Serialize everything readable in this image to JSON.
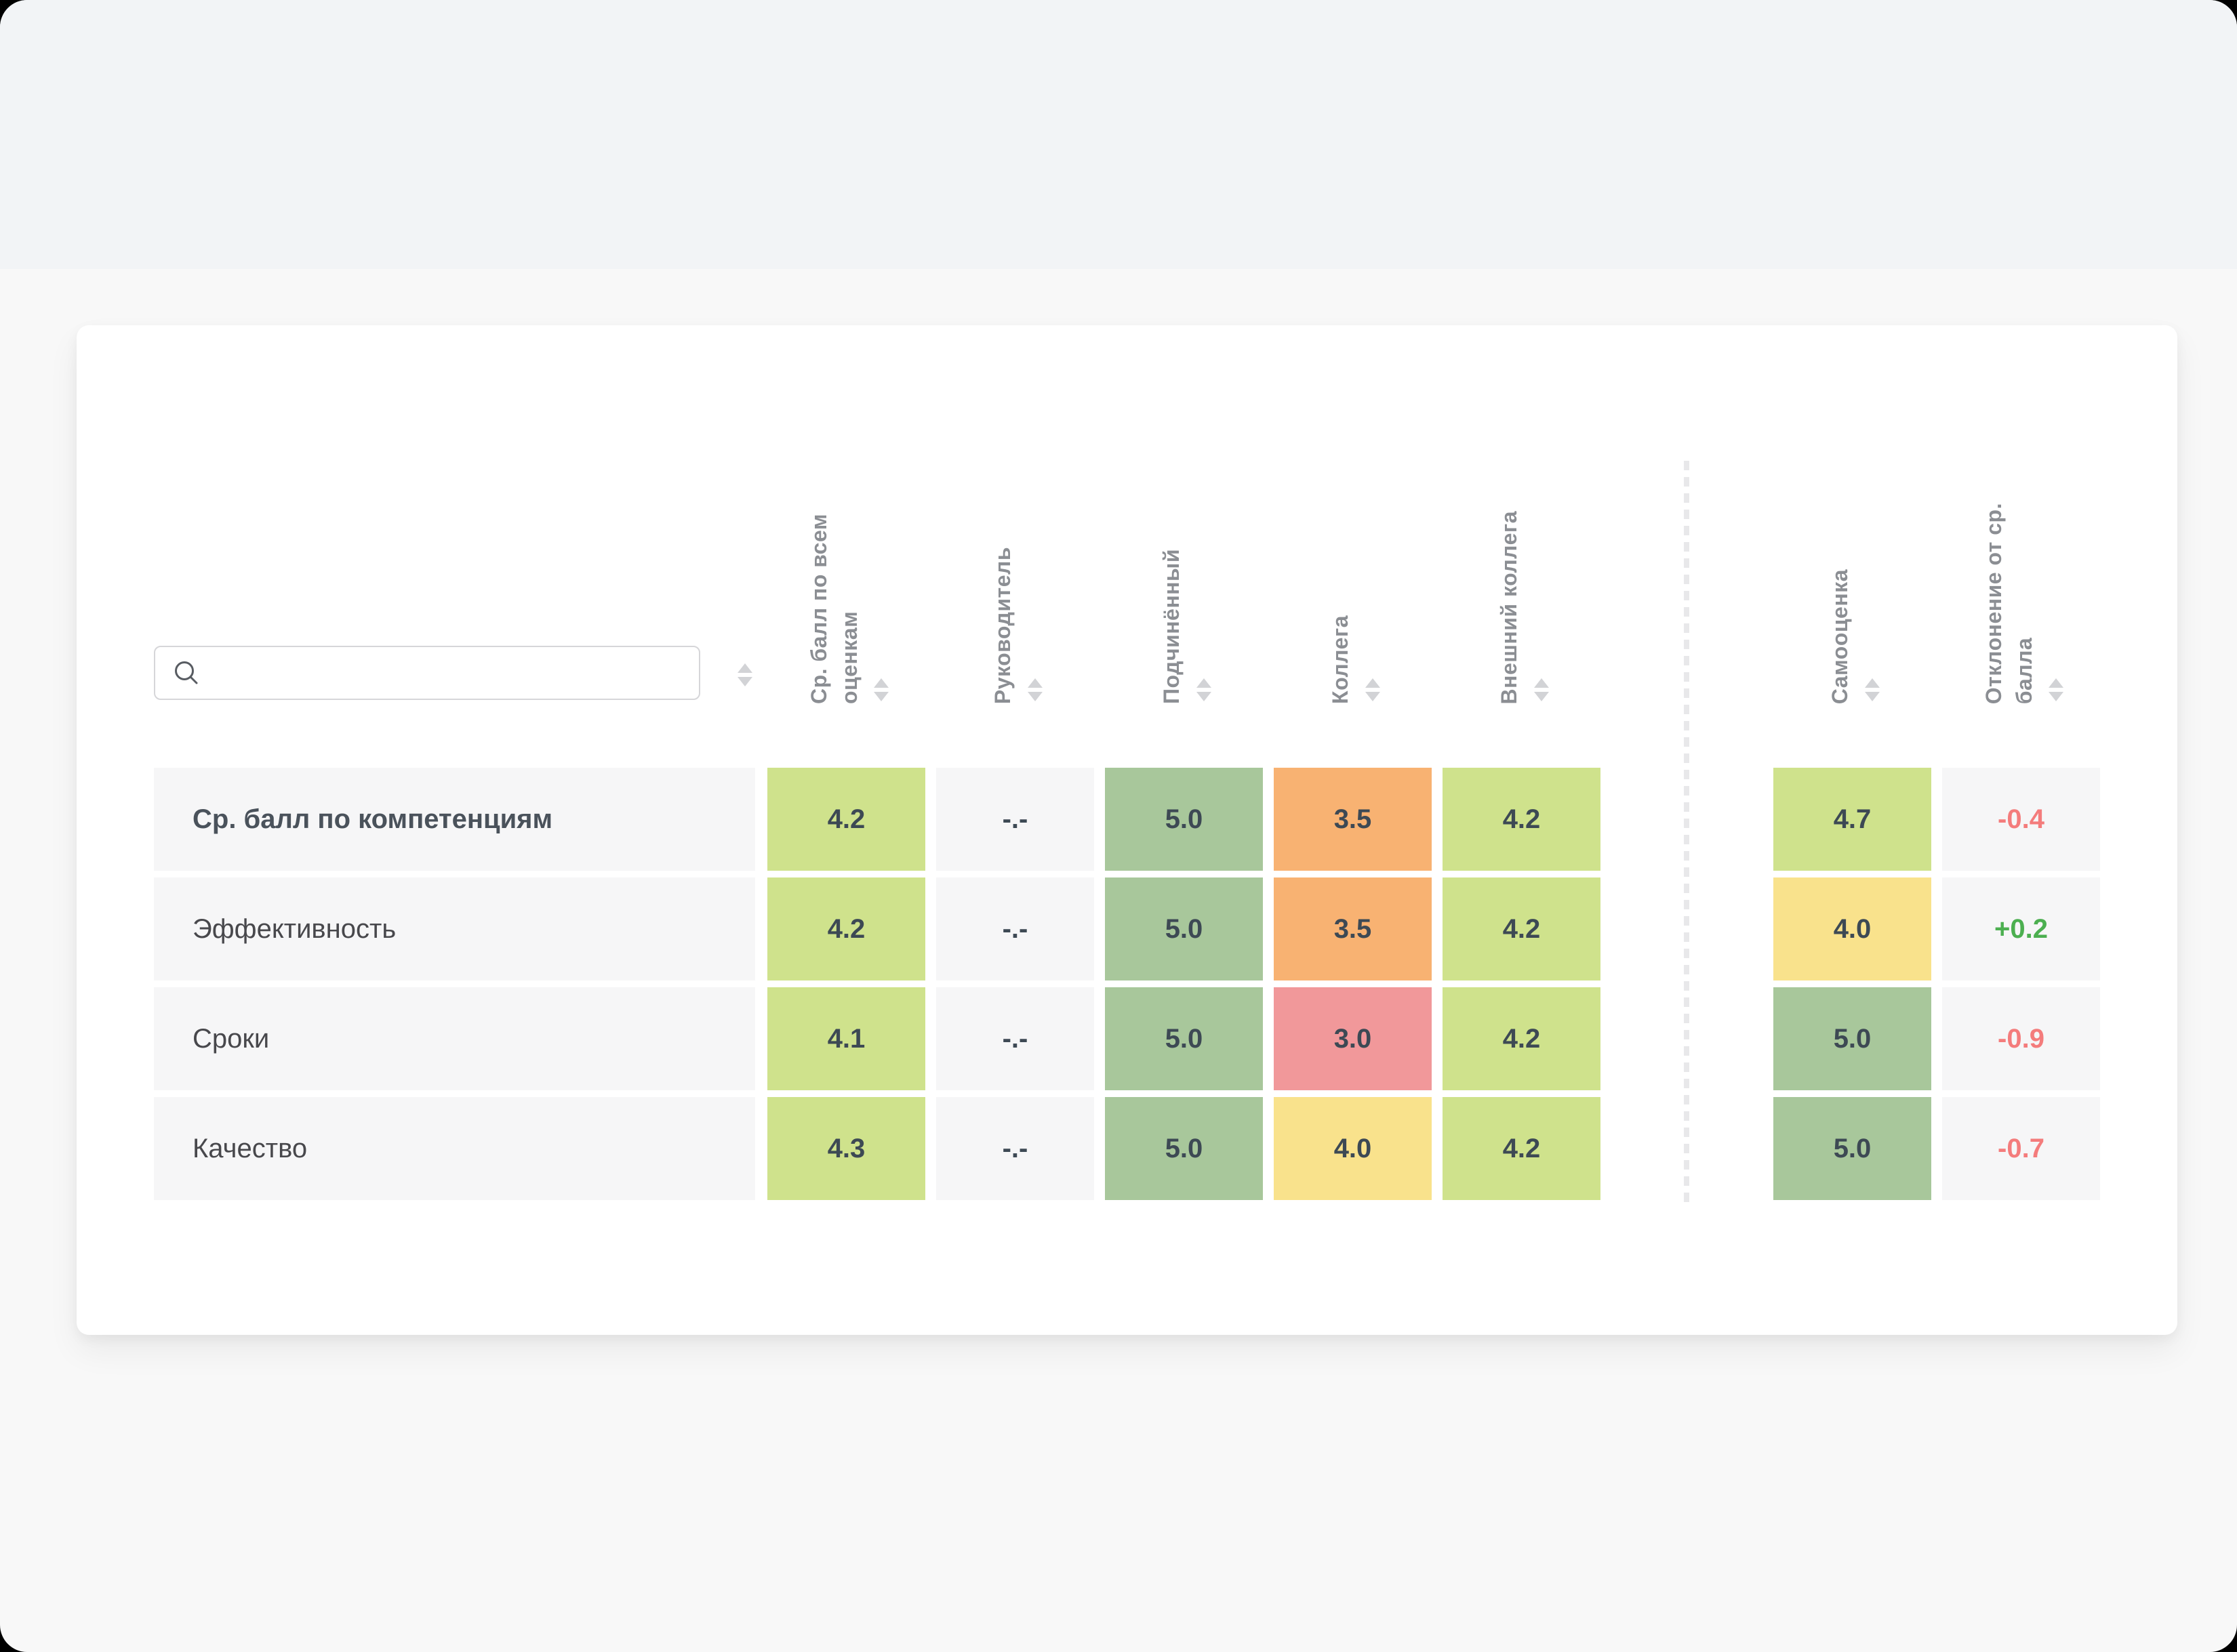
{
  "page": {
    "background_top": "#f2f4f6",
    "background_main": "#f8f8f8",
    "card_background": "#ffffff"
  },
  "search": {
    "placeholder": "",
    "value": ""
  },
  "table": {
    "columns": [
      {
        "key": "avg_all",
        "label": "Ср. балл по всем\nоценкам",
        "sortable": true
      },
      {
        "key": "manager",
        "label": "Руководитель",
        "sortable": true
      },
      {
        "key": "subordinate",
        "label": "Подчинённый",
        "sortable": true
      },
      {
        "key": "peer",
        "label": "Коллега",
        "sortable": true
      },
      {
        "key": "external_peer",
        "label": "Внешний коллега",
        "sortable": true
      },
      {
        "key": "self",
        "label": "Самооценка",
        "sortable": true
      },
      {
        "key": "deviation",
        "label": "Отклонение от ср.\nбалла",
        "sortable": true
      }
    ],
    "rows": [
      {
        "label": "Ср. балл по компетенциям",
        "bold": true,
        "cells": [
          {
            "text": "4.2",
            "bg": "light-green"
          },
          {
            "text": "-.-",
            "bg": "gray"
          },
          {
            "text": "5.0",
            "bg": "green"
          },
          {
            "text": "3.5",
            "bg": "orange"
          },
          {
            "text": "4.2",
            "bg": "light-green"
          },
          {
            "text": "4.7",
            "bg": "light-green"
          },
          {
            "text": "-0.4",
            "bg": "gray",
            "text_color": "red"
          }
        ]
      },
      {
        "label": "Эффективность",
        "bold": false,
        "cells": [
          {
            "text": "4.2",
            "bg": "light-green"
          },
          {
            "text": "-.-",
            "bg": "gray"
          },
          {
            "text": "5.0",
            "bg": "green"
          },
          {
            "text": "3.5",
            "bg": "orange"
          },
          {
            "text": "4.2",
            "bg": "light-green"
          },
          {
            "text": "4.0",
            "bg": "yellow"
          },
          {
            "text": "+0.2",
            "bg": "gray",
            "text_color": "green"
          }
        ]
      },
      {
        "label": "Сроки",
        "bold": false,
        "cells": [
          {
            "text": "4.1",
            "bg": "light-green"
          },
          {
            "text": "-.-",
            "bg": "gray"
          },
          {
            "text": "5.0",
            "bg": "green"
          },
          {
            "text": "3.0",
            "bg": "pink"
          },
          {
            "text": "4.2",
            "bg": "light-green"
          },
          {
            "text": "5.0",
            "bg": "green"
          },
          {
            "text": "-0.9",
            "bg": "gray",
            "text_color": "red"
          }
        ]
      },
      {
        "label": "Качество",
        "bold": false,
        "cells": [
          {
            "text": "4.3",
            "bg": "light-green"
          },
          {
            "text": "-.-",
            "bg": "gray"
          },
          {
            "text": "5.0",
            "bg": "green"
          },
          {
            "text": "4.0",
            "bg": "yellow"
          },
          {
            "text": "4.2",
            "bg": "light-green"
          },
          {
            "text": "5.0",
            "bg": "green"
          },
          {
            "text": "-0.7",
            "bg": "gray",
            "text_color": "red"
          }
        ]
      }
    ]
  },
  "colors": {
    "cell_light_green": "#cfe28c",
    "cell_green": "#a8c79b",
    "cell_orange": "#f8b272",
    "cell_pink": "#f1989a",
    "cell_yellow": "#f9e28c",
    "cell_gray": "#f6f6f7",
    "value_text": "#3d4954",
    "deviation_negative": "#f47c7c",
    "deviation_positive": "#4caf50",
    "header_text": "#8b8e93"
  }
}
